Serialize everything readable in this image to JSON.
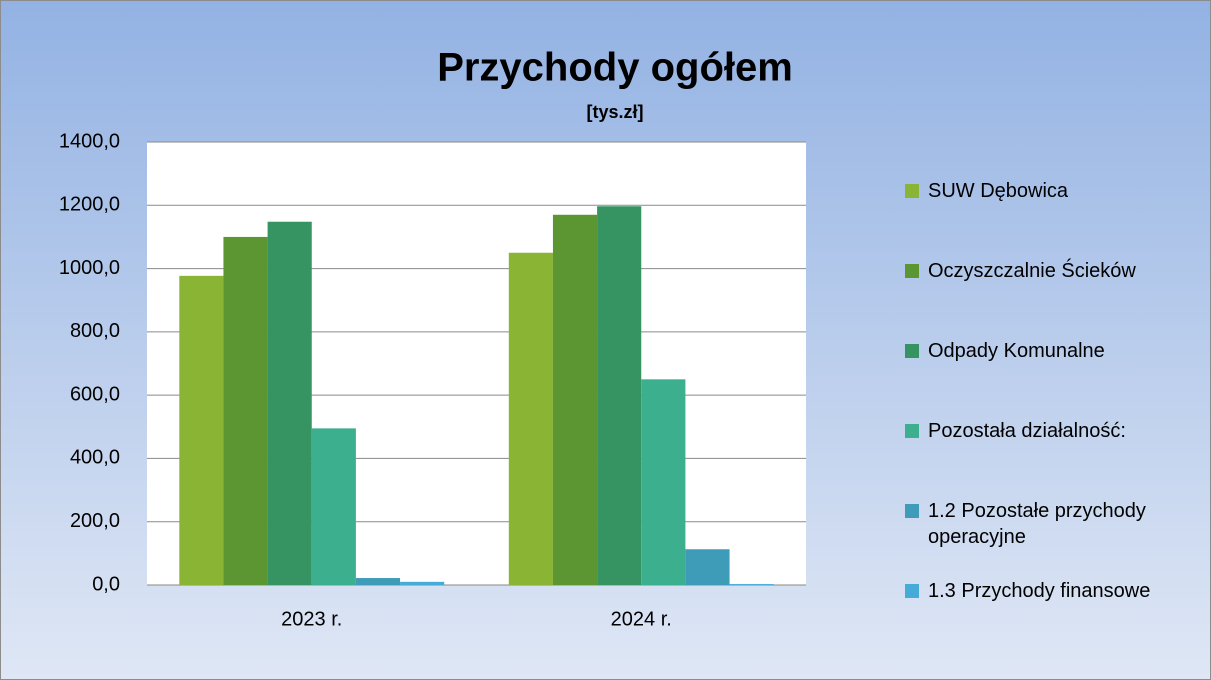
{
  "chart_data": {
    "type": "bar",
    "title": "Przychody ogółem",
    "subtitle": "[tys.zł]",
    "categories": [
      "2023 r.",
      "2024 r."
    ],
    "series": [
      {
        "name": "SUW Dębowica",
        "color": "#8ab534",
        "values": [
          977,
          1050
        ]
      },
      {
        "name": "Oczyszczalnie Ścieków",
        "color": "#5b9632",
        "values": [
          1100,
          1170
        ]
      },
      {
        "name": "Odpady Komunalne",
        "color": "#369462",
        "values": [
          1148,
          1197
        ]
      },
      {
        "name": "Pozostała działalność:",
        "color": "#3caf8f",
        "values": [
          495,
          650
        ]
      },
      {
        "name": "1.2 Pozostałe przychody operacyjne",
        "color": "#3f9cb9",
        "values": [
          22,
          113
        ]
      },
      {
        "name": "1.3 Przychody finansowe",
        "color": "#45acd8",
        "values": [
          10,
          3
        ]
      }
    ],
    "ylim": [
      0,
      1400
    ],
    "yticks": [
      {
        "value": 0,
        "label": "0,0"
      },
      {
        "value": 200,
        "label": "200,0"
      },
      {
        "value": 400,
        "label": "400,0"
      },
      {
        "value": 600,
        "label": "600,0"
      },
      {
        "value": 800,
        "label": "800,0"
      },
      {
        "value": 1000,
        "label": "1000,0"
      },
      {
        "value": 1200,
        "label": "1200,0"
      },
      {
        "value": 1400,
        "label": "1400,0"
      }
    ],
    "grid": true,
    "legend": "right"
  }
}
